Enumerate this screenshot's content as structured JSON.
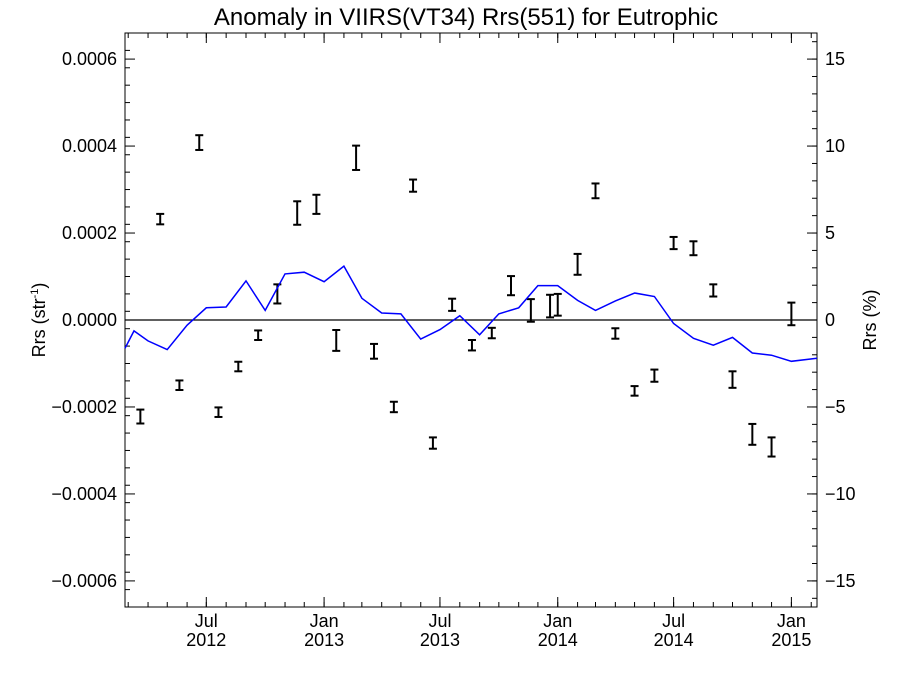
{
  "chart_data": {
    "type": "line",
    "title": "Anomaly in VIIRS(VT34) Rrs(551) for Eutrophic",
    "ylabel_left": {
      "base": "Rrs (str",
      "sup": "-1",
      "close": ")"
    },
    "ylabel_right": "Rrs (%)",
    "xlim": [
      "2012-02-25",
      "2015-02-10"
    ],
    "ylim": [
      -0.00066,
      0.00066
    ],
    "y2lim": [
      -16.5,
      16.5
    ],
    "y_ticks": [
      {
        "value": -0.0006,
        "label": "−0.0006"
      },
      {
        "value": -0.0004,
        "label": "−0.0004"
      },
      {
        "value": -0.0002,
        "label": "−0.0002"
      },
      {
        "value": 0,
        "label": "0.0000"
      },
      {
        "value": 0.0002,
        "label": "0.0002"
      },
      {
        "value": 0.0004,
        "label": "0.0004"
      },
      {
        "value": 0.0006,
        "label": "0.0006"
      }
    ],
    "y2_ticks": [
      {
        "value": -15,
        "label": "−15"
      },
      {
        "value": -10,
        "label": "−10"
      },
      {
        "value": -5,
        "label": "−5"
      },
      {
        "value": 0,
        "label": "0"
      },
      {
        "value": 5,
        "label": "5"
      },
      {
        "value": 10,
        "label": "10"
      },
      {
        "value": 15,
        "label": "15"
      }
    ],
    "x_ticks": [
      {
        "date": "2012-07-01",
        "line1": "Jul",
        "line2": "2012"
      },
      {
        "date": "2013-01-01",
        "line1": "Jan",
        "line2": "2013"
      },
      {
        "date": "2013-07-01",
        "line1": "Jul",
        "line2": "2013"
      },
      {
        "date": "2014-01-01",
        "line1": "Jan",
        "line2": "2014"
      },
      {
        "date": "2014-07-01",
        "line1": "Jul",
        "line2": "2014"
      },
      {
        "date": "2015-01-01",
        "line1": "Jan",
        "line2": "2015"
      }
    ],
    "zero_line": true,
    "series": [
      {
        "type": "line",
        "color": "#0000ff",
        "points": [
          [
            "2012-02-25",
            -6.5e-05
          ],
          [
            "2012-03-10",
            -2.5e-05
          ],
          [
            "2012-04-01",
            -4.8e-05
          ],
          [
            "2012-05-01",
            -6.8e-05
          ],
          [
            "2012-06-01",
            -1.2e-05
          ],
          [
            "2012-07-01",
            2.8e-05
          ],
          [
            "2012-08-01",
            3e-05
          ],
          [
            "2012-09-01",
            9e-05
          ],
          [
            "2012-10-01",
            2.2e-05
          ],
          [
            "2012-11-01",
            0.000106
          ],
          [
            "2012-12-01",
            0.00011
          ],
          [
            "2013-01-01",
            8.8e-05
          ],
          [
            "2013-02-01",
            0.000124
          ],
          [
            "2013-03-01",
            5e-05
          ],
          [
            "2013-04-01",
            1.6e-05
          ],
          [
            "2013-05-01",
            1.4e-05
          ],
          [
            "2013-06-01",
            -4.4e-05
          ],
          [
            "2013-07-01",
            -2.2e-05
          ],
          [
            "2013-08-01",
            1e-05
          ],
          [
            "2013-09-01",
            -3.4e-05
          ],
          [
            "2013-10-01",
            1.4e-05
          ],
          [
            "2013-11-01",
            2.8e-05
          ],
          [
            "2013-12-01",
            7.9e-05
          ],
          [
            "2014-01-01",
            7.9e-05
          ],
          [
            "2014-02-01",
            4.5e-05
          ],
          [
            "2014-03-01",
            2.2e-05
          ],
          [
            "2014-04-01",
            4.4e-05
          ],
          [
            "2014-05-01",
            6.2e-05
          ],
          [
            "2014-06-01",
            5.4e-05
          ],
          [
            "2014-07-01",
            -8e-06
          ],
          [
            "2014-08-01",
            -4.2e-05
          ],
          [
            "2014-09-01",
            -5.8e-05
          ],
          [
            "2014-10-01",
            -4e-05
          ],
          [
            "2014-11-01",
            -7.6e-05
          ],
          [
            "2014-12-01",
            -8.1e-05
          ],
          [
            "2015-01-01",
            -9.5e-05
          ],
          [
            "2015-02-10",
            -8.8e-05
          ]
        ]
      },
      {
        "type": "errorbar",
        "color": "#000000",
        "points": [
          [
            "2012-03-20",
            -0.000222,
            1.6e-05
          ],
          [
            "2012-04-20",
            0.000232,
            1.2e-05
          ],
          [
            "2012-05-20",
            -0.00015,
            1.1e-05
          ],
          [
            "2012-06-20",
            0.000408,
            1.7e-05
          ],
          [
            "2012-07-20",
            -0.000212,
            1.1e-05
          ],
          [
            "2012-08-20",
            -0.000107,
            1.1e-05
          ],
          [
            "2012-09-20",
            -3.5e-05,
            1.1e-05
          ],
          [
            "2012-10-20",
            6e-05,
            2.2e-05
          ],
          [
            "2012-11-20",
            0.000246,
            2.7e-05
          ],
          [
            "2012-12-20",
            0.000266,
            2.2e-05
          ],
          [
            "2013-01-20",
            -4.7e-05,
            2.4e-05
          ],
          [
            "2013-02-20",
            0.000373,
            2.8e-05
          ],
          [
            "2013-03-20",
            -7.2e-05,
            1.7e-05
          ],
          [
            "2013-04-20",
            -0.0002,
            1.2e-05
          ],
          [
            "2013-05-20",
            0.000309,
            1.4e-05
          ],
          [
            "2013-06-20",
            -0.000283,
            1.3e-05
          ],
          [
            "2013-07-20",
            3.5e-05,
            1.4e-05
          ],
          [
            "2013-08-20",
            -5.8e-05,
            1.2e-05
          ],
          [
            "2013-09-20",
            -3e-05,
            1.2e-05
          ],
          [
            "2013-10-20",
            7.9e-05,
            2.2e-05
          ],
          [
            "2013-11-20",
            2.2e-05,
            2.6e-05
          ],
          [
            "2013-12-20",
            3.2e-05,
            2.6e-05
          ],
          [
            "2014-01-01",
            3.5e-05,
            2.5e-05
          ],
          [
            "2014-02-01",
            0.000128,
            2.4e-05
          ],
          [
            "2014-03-01",
            0.000297,
            1.7e-05
          ],
          [
            "2014-04-01",
            -3.1e-05,
            1.2e-05
          ],
          [
            "2014-05-01",
            -0.000163,
            1.1e-05
          ],
          [
            "2014-06-01",
            -0.000128,
            1.4e-05
          ],
          [
            "2014-07-01",
            0.000177,
            1.4e-05
          ],
          [
            "2014-08-01",
            0.000165,
            1.6e-05
          ],
          [
            "2014-09-01",
            6.8e-05,
            1.4e-05
          ],
          [
            "2014-10-01",
            -0.000137,
            1.9e-05
          ],
          [
            "2014-11-01",
            -0.000263,
            2.4e-05
          ],
          [
            "2014-12-01",
            -0.000292,
            2.2e-05
          ],
          [
            "2015-01-01",
            1.4e-05,
            2.6e-05
          ]
        ]
      }
    ]
  }
}
